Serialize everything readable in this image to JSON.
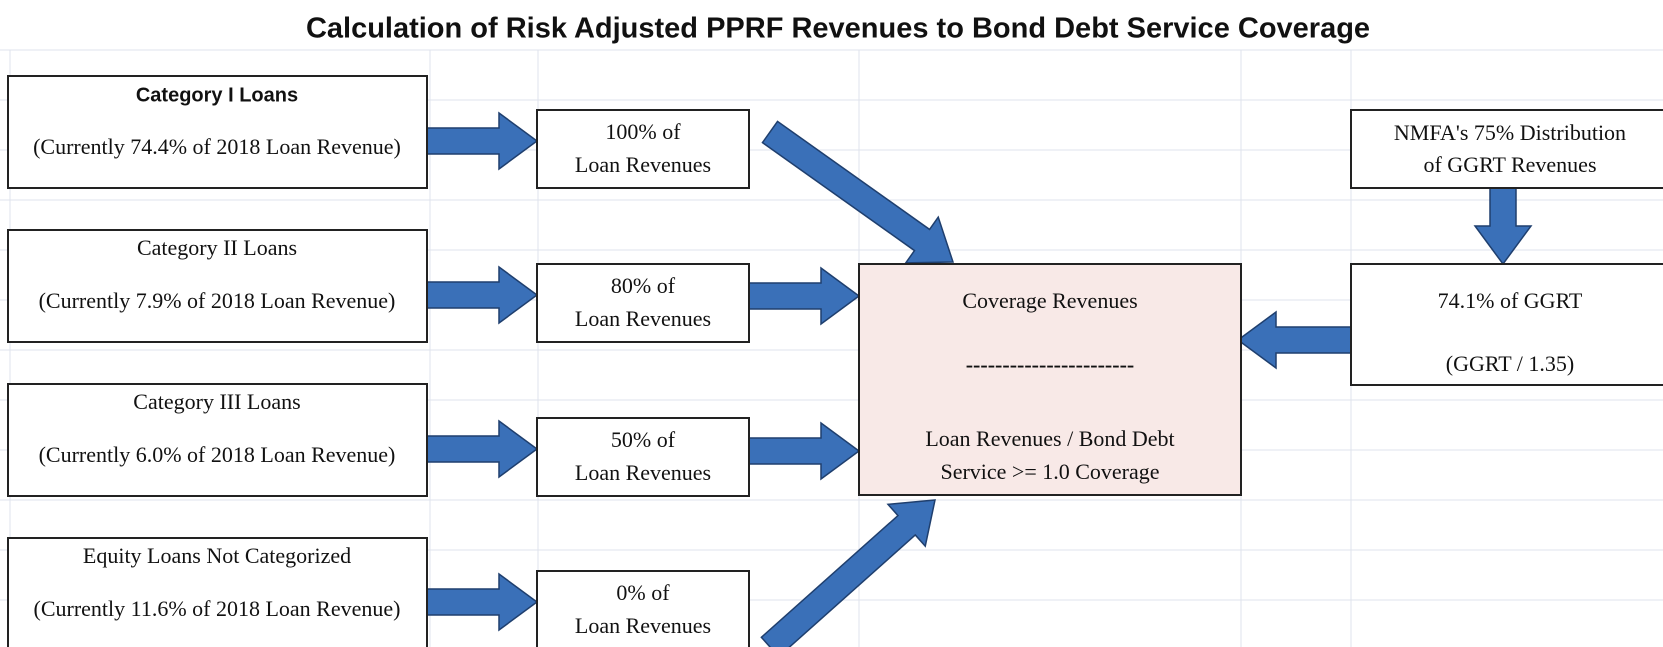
{
  "title": "Calculation of Risk Adjusted PPRF Revenues to Bond Debt Service Coverage",
  "categories": [
    {
      "label": "Category I Loans",
      "note": "(Currently 74.4% of 2018 Loan Revenue)",
      "share": [
        "100% of",
        "Loan Revenues"
      ]
    },
    {
      "label": "Category II Loans",
      "note": "(Currently 7.9% of 2018 Loan Revenue)",
      "share": [
        "80% of",
        "Loan Revenues"
      ]
    },
    {
      "label": "Category III Loans",
      "note": "(Currently 6.0% of 2018 Loan Revenue)",
      "share": [
        "50% of",
        "Loan Revenues"
      ]
    },
    {
      "label": "Equity Loans Not Categorized",
      "note": "(Currently 11.6% of 2018 Loan Revenue)",
      "share": [
        "0% of",
        "Loan Revenues"
      ]
    }
  ],
  "coverage": {
    "lines": [
      "Coverage Revenues",
      "-----------------------",
      "Loan Revenues / Bond Debt",
      "Service  >=  1.0 Coverage"
    ]
  },
  "ggrt": {
    "source": [
      "NMFA's 75% Distribution",
      "of GGRT Revenues"
    ],
    "result": [
      "74.1% of GGRT",
      "(GGRT / 1.35)"
    ]
  }
}
